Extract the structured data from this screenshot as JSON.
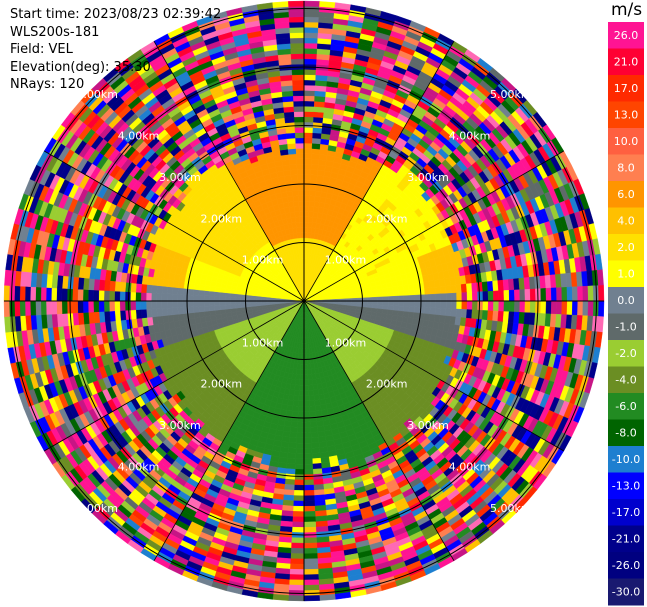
{
  "info": {
    "start_time": "Start time: 2023/08/23 02:39:42",
    "instrument": "WLS200s-181",
    "field": "Field: VEL",
    "elevation": "Elevation(deg): 35.30",
    "nrays": "NRays: 120"
  },
  "chart_data": {
    "type": "heatmap",
    "subtype": "polar-ppi",
    "grid": true,
    "range_rings_km": [
      1,
      2,
      3,
      4,
      5
    ],
    "range_ring_labels": [
      "1.00km",
      "2.00km",
      "3.00km",
      "4.00km",
      "5.00km"
    ],
    "radial_spokes_deg": [
      0,
      30,
      60,
      90,
      120,
      150,
      180,
      210,
      240,
      270,
      300,
      330
    ],
    "colorbar": {
      "title": "m/s",
      "tick_labels": [
        "26.0",
        "21.0",
        "17.0",
        "13.0",
        "10.0",
        "8.0",
        "6.0",
        "4.0",
        "2.0",
        "1.0",
        "0.0",
        "-1.0",
        "-2.0",
        "-4.0",
        "-6.0",
        "-8.0",
        "-10.0",
        "-13.0",
        "-17.0",
        "-21.0",
        "-26.0",
        "-30.0"
      ],
      "colors": [
        "#ff1493",
        "#ff0033",
        "#ff2a00",
        "#ff4500",
        "#ff6040",
        "#ff7f50",
        "#ff9500",
        "#ffc000",
        "#ffe000",
        "#ffff00",
        "#708090",
        "#5f6a6a",
        "#9acd32",
        "#6b8e23",
        "#228b22",
        "#006400",
        "#1e7fd0",
        "#0000ff",
        "#0000cd",
        "#00008b",
        "#000080",
        "#191970"
      ]
    }
  }
}
